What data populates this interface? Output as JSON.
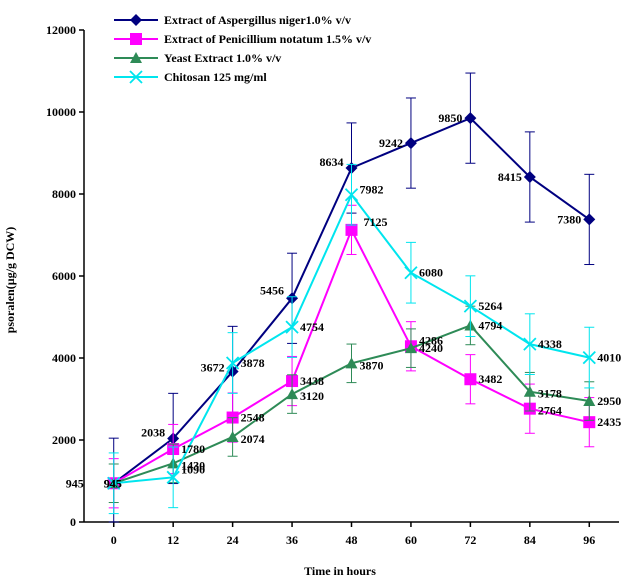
{
  "chart_data": {
    "type": "line",
    "xlabel": "Time in hours",
    "ylabel": "psoralen(µg/g DCW)",
    "x": [
      0,
      12,
      24,
      36,
      48,
      60,
      72,
      84,
      96
    ],
    "x_ticks": [
      "0",
      "12",
      "24",
      "36",
      "48",
      "60",
      "72",
      "84",
      "96"
    ],
    "ylim": [
      0,
      12000
    ],
    "y_ticks": [
      "0",
      "2000",
      "4000",
      "6000",
      "8000",
      "10000",
      "12000"
    ],
    "grid": false,
    "legend_position": "top-left",
    "series": [
      {
        "name": "Extract of Aspergillus niger1.0% v/v",
        "color": "#000080",
        "marker": "diamond",
        "values": [
          945,
          2038,
          3672,
          5456,
          8634,
          9242,
          9850,
          8415,
          7380
        ],
        "labels": [
          "945",
          "2038",
          "3672",
          "5456",
          "8634",
          "9242",
          "9850",
          "8415",
          "7380"
        ],
        "errors": [
          1100,
          1100,
          1100,
          1100,
          1100,
          1100,
          1100,
          1100,
          1100
        ]
      },
      {
        "name": "Extract of Penicillium notatum 1.5% v/v",
        "color": "#FF00FF",
        "marker": "square",
        "values": [
          945,
          1780,
          2548,
          3438,
          7125,
          4286,
          3482,
          2764,
          2435
        ],
        "labels": [
          "945",
          "1780",
          "2548",
          "3438",
          "7125",
          "4286",
          "3482",
          "2764",
          "2435"
        ],
        "errors": [
          600,
          600,
          600,
          600,
          600,
          600,
          600,
          600,
          600
        ]
      },
      {
        "name": "Yeast Extract 1.0% v/v",
        "color": "#2E8B57",
        "marker": "triangle",
        "values": [
          945,
          1430,
          2074,
          3120,
          3870,
          4240,
          4794,
          3178,
          2950
        ],
        "labels": [
          "945",
          "1430",
          "2074",
          "3120",
          "3870",
          "4240",
          "4794",
          "3178",
          "2950"
        ],
        "errors": [
          470,
          470,
          470,
          470,
          470,
          470,
          470,
          470,
          470
        ]
      },
      {
        "name": "Chitosan 125 mg/ml",
        "color": "#00E5EE",
        "marker": "x",
        "values": [
          945,
          1090,
          3878,
          4754,
          7982,
          6080,
          5264,
          4338,
          4010
        ],
        "labels": [
          "",
          "1090",
          "3878",
          "4754",
          "7982",
          "6080",
          "5264",
          "4338",
          "4010"
        ],
        "errors": [
          740,
          740,
          740,
          740,
          740,
          740,
          740,
          740,
          740
        ]
      }
    ]
  }
}
